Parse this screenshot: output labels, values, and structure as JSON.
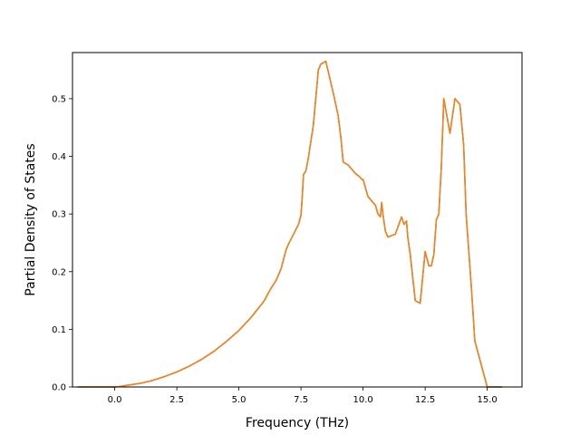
{
  "chart_data": {
    "type": "line",
    "xlabel": "Frequency (THz)",
    "ylabel": "Partial Density of States",
    "xlim": [
      -1.7,
      16.4
    ],
    "ylim": [
      0.0,
      0.58
    ],
    "xticks": [
      0.0,
      2.5,
      5.0,
      7.5,
      10.0,
      12.5,
      15.0
    ],
    "xtick_labels": [
      "0.0",
      "2.5",
      "5.0",
      "7.5",
      "10.0",
      "12.5",
      "15.0"
    ],
    "yticks": [
      0.0,
      0.1,
      0.2,
      0.3,
      0.4,
      0.5
    ],
    "ytick_labels": [
      "0.0",
      "0.1",
      "0.2",
      "0.3",
      "0.4",
      "0.5"
    ],
    "grid": false,
    "legend": "none",
    "series": [
      {
        "color": "#1f77b4",
        "x": [
          -1.5,
          -1.0,
          -0.5,
          0.0,
          0.25,
          0.5,
          1.0,
          1.5,
          2.0,
          2.5,
          3.0,
          3.5,
          4.0,
          4.5,
          5.0,
          5.5,
          5.7,
          6.0,
          6.25,
          6.5,
          6.7,
          6.9,
          7.0,
          7.2,
          7.4,
          7.5,
          7.55,
          7.6,
          7.7,
          7.8,
          8.0,
          8.2,
          8.3,
          8.5,
          8.8,
          9.0,
          9.1,
          9.2,
          9.4,
          9.7,
          9.85,
          9.95,
          10.0,
          10.2,
          10.5,
          10.6,
          10.7,
          10.75,
          10.8,
          10.9,
          11.0,
          11.3,
          11.55,
          11.65,
          11.75,
          11.8,
          11.9,
          12.0,
          12.1,
          12.3,
          12.5,
          12.65,
          12.75,
          12.85,
          12.95,
          13.05,
          13.15,
          13.25,
          13.5,
          13.7,
          13.9,
          14.05,
          14.15,
          14.25,
          14.35,
          14.5,
          15.0,
          15.6
        ],
        "y": [
          0.0,
          0.0,
          0.0,
          0.0,
          0.001,
          0.003,
          0.006,
          0.011,
          0.018,
          0.026,
          0.036,
          0.048,
          0.062,
          0.079,
          0.098,
          0.121,
          0.132,
          0.148,
          0.168,
          0.185,
          0.205,
          0.238,
          0.248,
          0.265,
          0.282,
          0.298,
          0.328,
          0.368,
          0.375,
          0.398,
          0.455,
          0.55,
          0.56,
          0.565,
          0.51,
          0.47,
          0.435,
          0.39,
          0.385,
          0.37,
          0.365,
          0.36,
          0.36,
          0.33,
          0.315,
          0.3,
          0.295,
          0.32,
          0.3,
          0.27,
          0.26,
          0.265,
          0.295,
          0.282,
          0.288,
          0.26,
          0.23,
          0.19,
          0.15,
          0.145,
          0.235,
          0.21,
          0.21,
          0.23,
          0.29,
          0.3,
          0.38,
          0.5,
          0.44,
          0.5,
          0.49,
          0.42,
          0.3,
          0.24,
          0.18,
          0.08,
          0.0,
          0.0
        ]
      },
      {
        "color": "#ff7f0e",
        "x": [
          -1.5,
          -1.0,
          -0.5,
          0.0,
          0.25,
          0.5,
          1.0,
          1.5,
          2.0,
          2.5,
          3.0,
          3.5,
          4.0,
          4.5,
          5.0,
          5.5,
          5.7,
          6.0,
          6.25,
          6.5,
          6.7,
          6.9,
          7.0,
          7.2,
          7.4,
          7.5,
          7.55,
          7.6,
          7.7,
          7.8,
          8.0,
          8.2,
          8.3,
          8.5,
          8.8,
          9.0,
          9.1,
          9.2,
          9.4,
          9.7,
          9.85,
          9.95,
          10.0,
          10.2,
          10.5,
          10.6,
          10.7,
          10.75,
          10.8,
          10.9,
          11.0,
          11.3,
          11.55,
          11.65,
          11.75,
          11.8,
          11.9,
          12.0,
          12.1,
          12.3,
          12.5,
          12.65,
          12.75,
          12.85,
          12.95,
          13.05,
          13.15,
          13.25,
          13.5,
          13.7,
          13.9,
          14.05,
          14.15,
          14.25,
          14.35,
          14.5,
          15.0,
          15.6
        ],
        "y": [
          0.0,
          0.0,
          0.0,
          0.0,
          0.001,
          0.003,
          0.006,
          0.011,
          0.018,
          0.026,
          0.036,
          0.048,
          0.062,
          0.079,
          0.098,
          0.121,
          0.132,
          0.148,
          0.168,
          0.185,
          0.205,
          0.238,
          0.248,
          0.265,
          0.282,
          0.298,
          0.328,
          0.368,
          0.375,
          0.398,
          0.455,
          0.55,
          0.56,
          0.565,
          0.51,
          0.47,
          0.435,
          0.39,
          0.385,
          0.37,
          0.365,
          0.36,
          0.36,
          0.33,
          0.315,
          0.3,
          0.295,
          0.32,
          0.3,
          0.27,
          0.26,
          0.265,
          0.295,
          0.282,
          0.288,
          0.26,
          0.23,
          0.19,
          0.15,
          0.145,
          0.235,
          0.21,
          0.21,
          0.23,
          0.29,
          0.3,
          0.38,
          0.5,
          0.44,
          0.5,
          0.49,
          0.42,
          0.3,
          0.24,
          0.18,
          0.08,
          0.0,
          0.0
        ]
      }
    ]
  }
}
